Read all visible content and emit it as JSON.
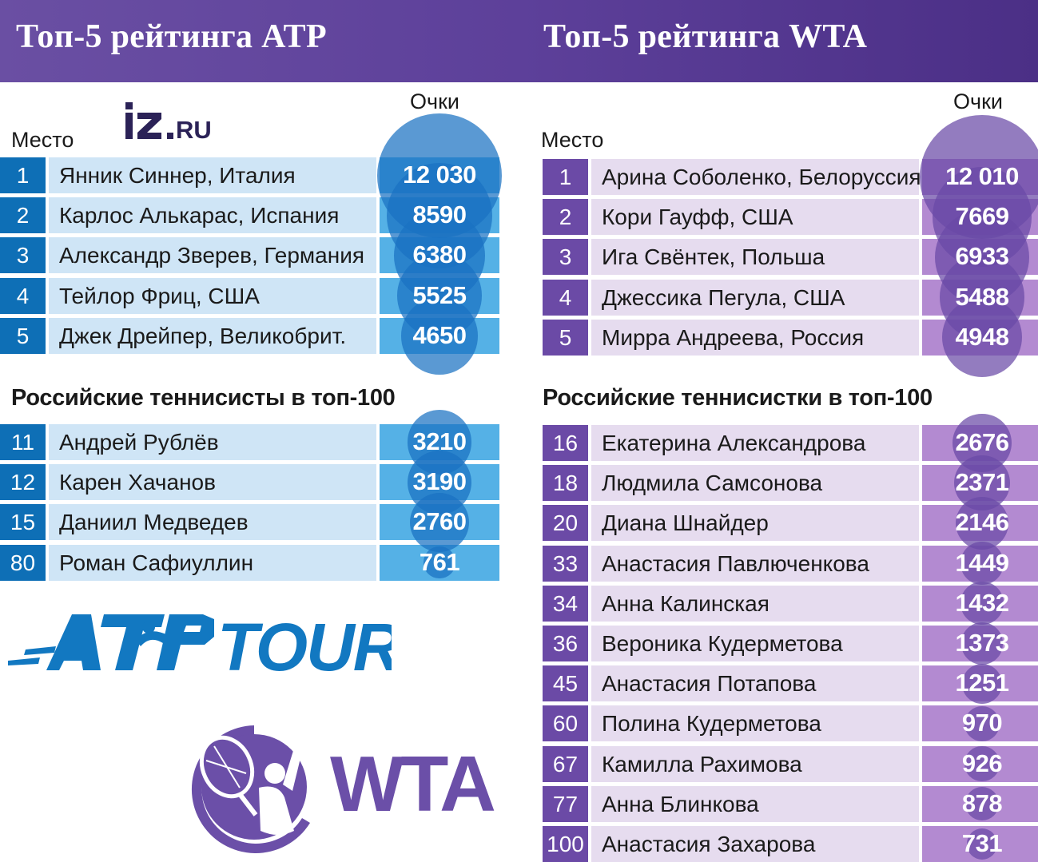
{
  "header": {
    "atp_title": "Топ-5 рейтинга ATP",
    "wta_title": "Топ-5 рейтинга WTA"
  },
  "labels": {
    "place": "Место",
    "points": "Очки"
  },
  "logos": {
    "iz": "iz.RU",
    "atp": "ATPTOUR",
    "wta": "WTA"
  },
  "colors": {
    "header": "#5d409a",
    "atp_rank": "#0e6fb6",
    "atp_row": "#cfe5f6",
    "atp_pts": "#55b1e6",
    "atp_bubble": "#1a72c2",
    "wta_rank": "#6b4aa6",
    "wta_row": "#e6dcef",
    "wta_pts": "#b38ad1",
    "wta_bubble": "#6a4aa6"
  },
  "chart_data": [
    {
      "type": "table",
      "title": "Топ-5 рейтинга ATP",
      "columns": [
        "Место",
        "",
        "Очки"
      ],
      "rows": [
        {
          "rank": "1",
          "name": "Янник Синнер, Италия",
          "points": 12030,
          "label": "12 030"
        },
        {
          "rank": "2",
          "name": "Карлос Алькарас, Испания",
          "points": 8590,
          "label": "8590"
        },
        {
          "rank": "3",
          "name": "Александр Зверев, Германия",
          "points": 6380,
          "label": "6380"
        },
        {
          "rank": "4",
          "name": "Тейлор Фриц, США",
          "points": 5525,
          "label": "5525"
        },
        {
          "rank": "5",
          "name": "Джек Дрейпер, Великобрит.",
          "points": 4650,
          "label": "4650"
        }
      ]
    },
    {
      "type": "table",
      "title": "Российские теннисисты в топ-100",
      "rows": [
        {
          "rank": "11",
          "name": "Андрей Рублёв",
          "points": 3210,
          "label": "3210"
        },
        {
          "rank": "12",
          "name": "Карен Хачанов",
          "points": 3190,
          "label": "3190"
        },
        {
          "rank": "15",
          "name": "Даниил Медведев",
          "points": 2760,
          "label": "2760"
        },
        {
          "rank": "80",
          "name": "Роман Сафиуллин",
          "points": 761,
          "label": "761"
        }
      ]
    },
    {
      "type": "table",
      "title": "Топ-5 рейтинга WTA",
      "columns": [
        "Место",
        "",
        "Очки"
      ],
      "rows": [
        {
          "rank": "1",
          "name": "Арина Соболенко, Белоруссия",
          "points": 12010,
          "label": "12 010"
        },
        {
          "rank": "2",
          "name": "Кори Гауфф, США",
          "points": 7669,
          "label": "7669"
        },
        {
          "rank": "3",
          "name": "Ига Свёнтек, Польша",
          "points": 6933,
          "label": "6933"
        },
        {
          "rank": "4",
          "name": "Джессика Пегула, США",
          "points": 5488,
          "label": "5488"
        },
        {
          "rank": "5",
          "name": "Мирра Андреева, Россия",
          "points": 4948,
          "label": "4948"
        }
      ]
    },
    {
      "type": "table",
      "title": "Российские теннисистки в топ-100",
      "rows": [
        {
          "rank": "16",
          "name": "Екатерина Александрова",
          "points": 2676,
          "label": "2676"
        },
        {
          "rank": "18",
          "name": "Людмила Самсонова",
          "points": 2371,
          "label": "2371"
        },
        {
          "rank": "20",
          "name": "Диана Шнайдер",
          "points": 2146,
          "label": "2146"
        },
        {
          "rank": "33",
          "name": "Анастасия Павлюченкова",
          "points": 1449,
          "label": "1449"
        },
        {
          "rank": "34",
          "name": "Анна Калинская",
          "points": 1432,
          "label": "1432"
        },
        {
          "rank": "36",
          "name": "Вероника Кудерметова",
          "points": 1373,
          "label": "1373"
        },
        {
          "rank": "45",
          "name": "Анастасия Потапова",
          "points": 1251,
          "label": "1251"
        },
        {
          "rank": "60",
          "name": "Полина Кудерметова",
          "points": 970,
          "label": "970"
        },
        {
          "rank": "67",
          "name": "Камилла Рахимова",
          "points": 926,
          "label": "926"
        },
        {
          "rank": "77",
          "name": "Анна Блинкова",
          "points": 878,
          "label": "878"
        },
        {
          "rank": "100",
          "name": "Анастасия Захарова",
          "points": 731,
          "label": "731"
        }
      ]
    }
  ]
}
